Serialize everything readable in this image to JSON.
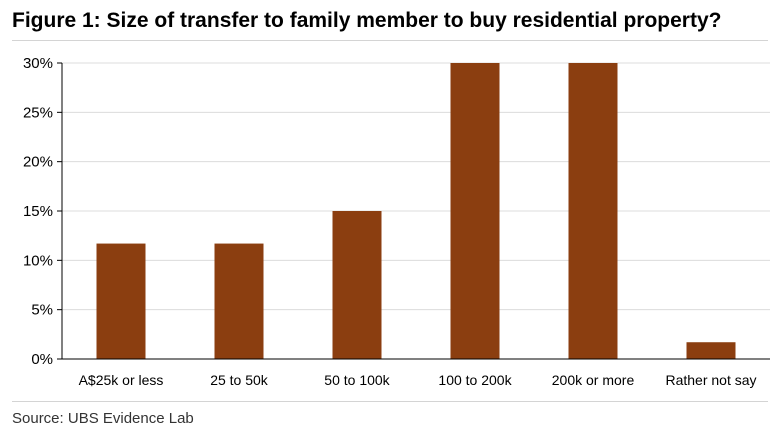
{
  "header": {
    "title": "Figure 1: Size of transfer to family member to buy residential property?"
  },
  "footer": {
    "source": "Source:  UBS Evidence Lab"
  },
  "colors": {
    "bar": "#8B3E10",
    "grid": "#dcdcdc",
    "axis": "#000000"
  },
  "chart_data": {
    "type": "bar",
    "title": "Figure 1: Size of transfer to family member to buy residential property?",
    "xlabel": "",
    "ylabel": "",
    "categories": [
      "A$25k or less",
      "25 to 50k",
      "50 to 100k",
      "100 to 200k",
      "200k or more",
      "Rather not say"
    ],
    "values": [
      11.7,
      11.7,
      15.0,
      30.0,
      30.0,
      1.7
    ],
    "ylim": [
      0,
      30
    ],
    "yticks": [
      0,
      5,
      10,
      15,
      20,
      25,
      30
    ],
    "ytick_labels": [
      "0%",
      "5%",
      "10%",
      "15%",
      "20%",
      "25%",
      "30%"
    ],
    "grid": true,
    "legend": "none"
  }
}
